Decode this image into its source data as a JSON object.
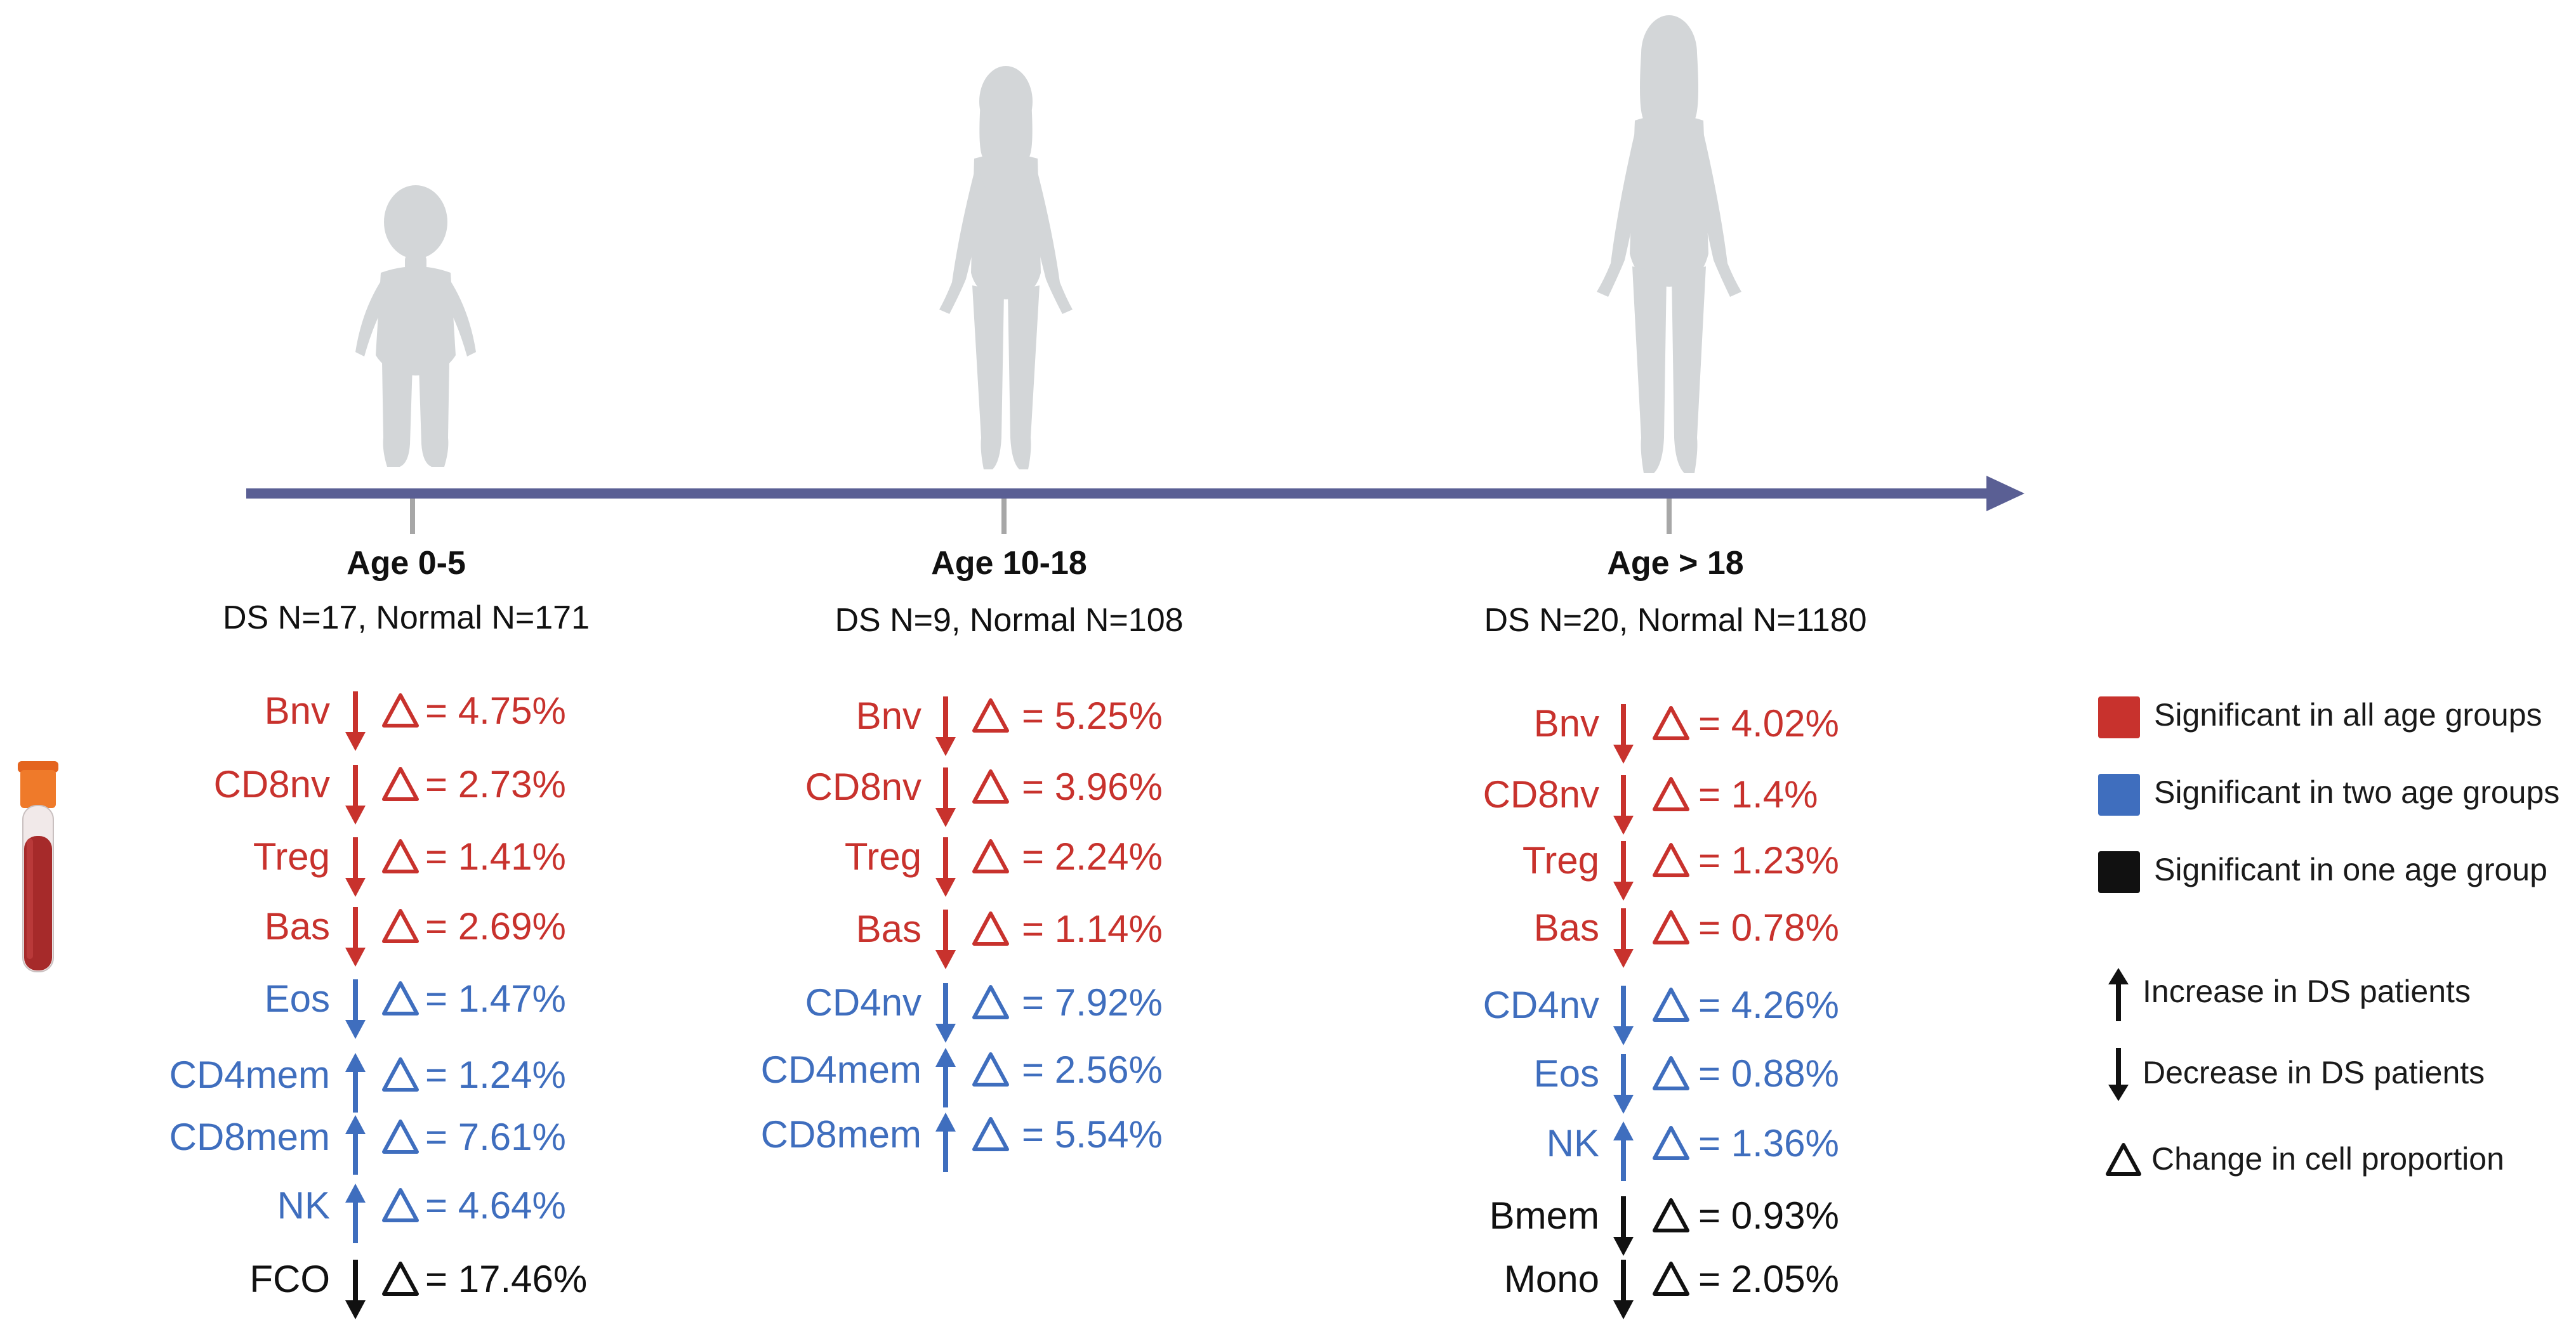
{
  "colors": {
    "red": "#c8322d",
    "blue": "#3f6ebe",
    "black": "#111111",
    "axis": "#5a5f94",
    "figure": "#d3d6d8"
  },
  "groups": [
    {
      "title": "Age 0-5",
      "subtitle": "DS N=17, Normal N=171",
      "rows": [
        {
          "cell": "Bnv",
          "dir": "down",
          "color": "red",
          "value": "= 4.75%"
        },
        {
          "cell": "CD8nv",
          "dir": "down",
          "color": "red",
          "value": "= 2.73%"
        },
        {
          "cell": "Treg",
          "dir": "down",
          "color": "red",
          "value": "= 1.41%"
        },
        {
          "cell": "Bas",
          "dir": "down",
          "color": "red",
          "value": "= 2.69%"
        },
        {
          "cell": "Eos",
          "dir": "down",
          "color": "blue",
          "value": "= 1.47%"
        },
        {
          "cell": "CD4mem",
          "dir": "up",
          "color": "blue",
          "value": "= 1.24%"
        },
        {
          "cell": "CD8mem",
          "dir": "up",
          "color": "blue",
          "value": "= 7.61%"
        },
        {
          "cell": "NK",
          "dir": "up",
          "color": "blue",
          "value": "= 4.64%"
        },
        {
          "cell": "FCO",
          "dir": "down",
          "color": "black",
          "value": "= 17.46%"
        }
      ]
    },
    {
      "title": "Age 10-18",
      "subtitle": "DS N=9, Normal N=108",
      "rows": [
        {
          "cell": "Bnv",
          "dir": "down",
          "color": "red",
          "value": "= 5.25%"
        },
        {
          "cell": "CD8nv",
          "dir": "down",
          "color": "red",
          "value": "= 3.96%"
        },
        {
          "cell": "Treg",
          "dir": "down",
          "color": "red",
          "value": "= 2.24%"
        },
        {
          "cell": "Bas",
          "dir": "down",
          "color": "red",
          "value": "= 1.14%"
        },
        {
          "cell": "CD4nv",
          "dir": "down",
          "color": "blue",
          "value": "= 7.92%"
        },
        {
          "cell": "CD4mem",
          "dir": "up",
          "color": "blue",
          "value": "= 2.56%"
        },
        {
          "cell": "CD8mem",
          "dir": "up",
          "color": "blue",
          "value": "= 5.54%"
        }
      ]
    },
    {
      "title": "Age > 18",
      "subtitle": "DS N=20, Normal N=1180",
      "rows": [
        {
          "cell": "Bnv",
          "dir": "down",
          "color": "red",
          "value": "= 4.02%"
        },
        {
          "cell": "CD8nv",
          "dir": "down",
          "color": "red",
          "value": "= 1.4%"
        },
        {
          "cell": "Treg",
          "dir": "down",
          "color": "red",
          "value": "= 1.23%"
        },
        {
          "cell": "Bas",
          "dir": "down",
          "color": "red",
          "value": "= 0.78%"
        },
        {
          "cell": "CD4nv",
          "dir": "down",
          "color": "blue",
          "value": "= 4.26%"
        },
        {
          "cell": "Eos",
          "dir": "down",
          "color": "blue",
          "value": "= 0.88%"
        },
        {
          "cell": "NK",
          "dir": "up",
          "color": "blue",
          "value": "= 1.36%"
        },
        {
          "cell": "Bmem",
          "dir": "down",
          "color": "black",
          "value": "= 0.93%"
        },
        {
          "cell": "Mono",
          "dir": "down",
          "color": "black",
          "value": "= 2.05%"
        }
      ]
    }
  ],
  "legend": {
    "red_label": "Significant in all age groups",
    "blue_label": "Significant in two age groups",
    "black_label": "Significant in one age group",
    "increase_label": "Increase in DS patients",
    "decrease_label": "Decrease in DS patients",
    "change_label": "Change in cell proportion"
  }
}
